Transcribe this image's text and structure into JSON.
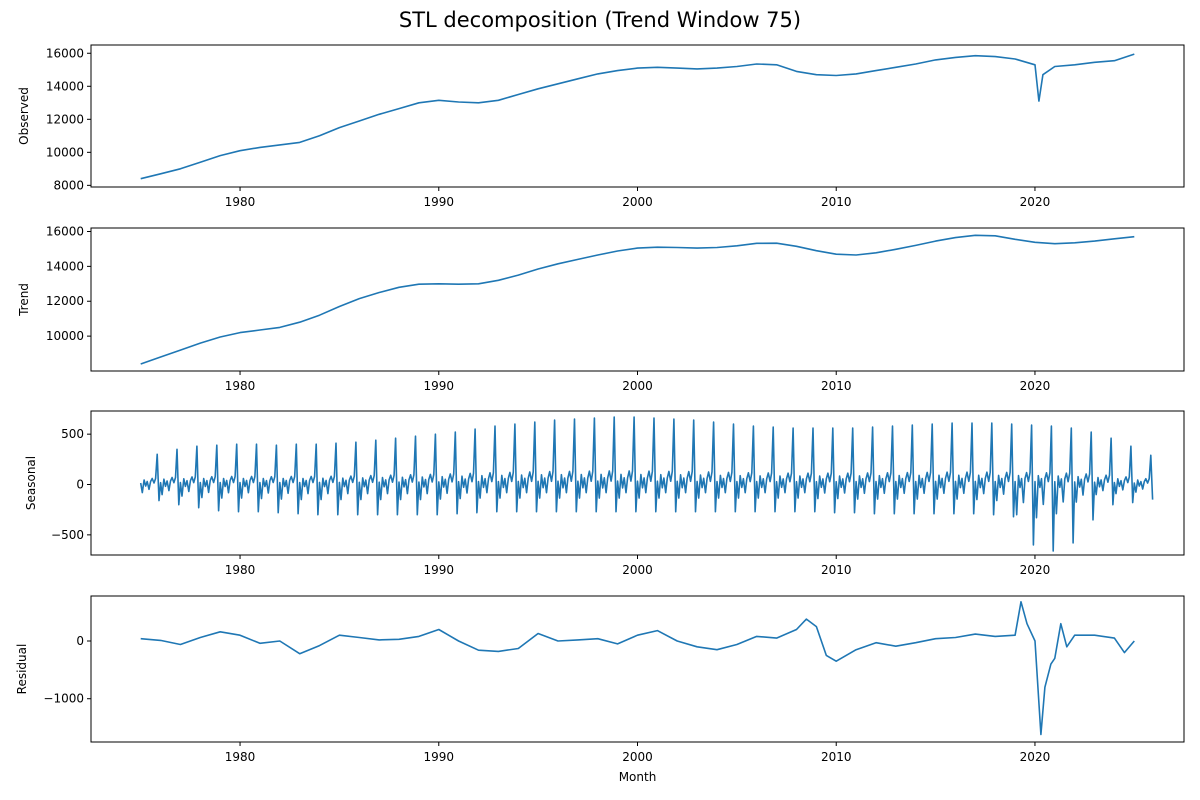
{
  "title": "STL decomposition (Trend Window 75)",
  "chart_data": [
    {
      "type": "line",
      "panel": "observed",
      "ylabel": "Observed",
      "xlabel": "",
      "xlim": [
        1972.5,
        2027.5
      ],
      "ylim": [
        7900,
        16500
      ],
      "xticks": [
        1980,
        1990,
        2000,
        2010,
        2020
      ],
      "yticks": [
        8000,
        10000,
        12000,
        14000,
        16000
      ],
      "ytick_labels": [
        "8000",
        "10000",
        "12000",
        "14000",
        "16000"
      ],
      "series": [
        {
          "x": [
            1975,
            1976,
            1977,
            1978,
            1979,
            1980,
            1981,
            1982,
            1983,
            1984,
            1985,
            1986,
            1987,
            1988,
            1989,
            1990,
            1991,
            1992,
            1993,
            1994,
            1995,
            1996,
            1997,
            1998,
            1999,
            2000,
            2001,
            2002,
            2003,
            2004,
            2005,
            2006,
            2007,
            2008,
            2009,
            2010,
            2011,
            2012,
            2013,
            2014,
            2015,
            2016,
            2017,
            2018,
            2019,
            2020,
            2020.2,
            2020.4,
            2021,
            2022,
            2023,
            2024,
            2025
          ],
          "y": [
            8400,
            8700,
            9000,
            9400,
            9800,
            10100,
            10300,
            10450,
            10600,
            11000,
            11500,
            11900,
            12300,
            12650,
            13000,
            13150,
            13050,
            13000,
            13150,
            13500,
            13850,
            14150,
            14450,
            14750,
            14950,
            15100,
            15150,
            15100,
            15050,
            15100,
            15200,
            15350,
            15300,
            14900,
            14700,
            14650,
            14750,
            14950,
            15150,
            15350,
            15600,
            15750,
            15850,
            15800,
            15650,
            15300,
            13100,
            14700,
            15200,
            15300,
            15450,
            15550,
            15950
          ]
        }
      ]
    },
    {
      "type": "line",
      "panel": "trend",
      "ylabel": "Trend",
      "xlabel": "",
      "xlim": [
        1972.5,
        2027.5
      ],
      "ylim": [
        8000,
        16200
      ],
      "xticks": [
        1980,
        1990,
        2000,
        2010,
        2020
      ],
      "yticks": [
        10000,
        12000,
        14000,
        16000
      ],
      "ytick_labels": [
        "10000",
        "12000",
        "14000",
        "16000"
      ],
      "series": [
        {
          "x": [
            1975,
            1976,
            1977,
            1978,
            1979,
            1980,
            1981,
            1982,
            1983,
            1984,
            1985,
            1986,
            1987,
            1988,
            1989,
            1990,
            1991,
            1992,
            1993,
            1994,
            1995,
            1996,
            1997,
            1998,
            1999,
            2000,
            2001,
            2002,
            2003,
            2004,
            2005,
            2006,
            2007,
            2008,
            2009,
            2010,
            2011,
            2012,
            2013,
            2014,
            2015,
            2016,
            2017,
            2018,
            2019,
            2020,
            2021,
            2022,
            2023,
            2024,
            2025
          ],
          "y": [
            8400,
            8800,
            9200,
            9600,
            9950,
            10200,
            10350,
            10500,
            10800,
            11200,
            11700,
            12150,
            12500,
            12800,
            12980,
            13000,
            12980,
            13000,
            13200,
            13500,
            13850,
            14150,
            14400,
            14650,
            14880,
            15050,
            15100,
            15080,
            15050,
            15080,
            15180,
            15320,
            15330,
            15150,
            14900,
            14700,
            14650,
            14780,
            14980,
            15200,
            15450,
            15650,
            15780,
            15750,
            15550,
            15380,
            15300,
            15350,
            15450,
            15580,
            15700
          ]
        }
      ]
    },
    {
      "type": "line",
      "panel": "seasonal",
      "ylabel": "Seasonal",
      "xlabel": "",
      "xlim": [
        1972.5,
        2027.5
      ],
      "ylim": [
        -700,
        730
      ],
      "xticks": [
        1980,
        1990,
        2000,
        2010,
        2020
      ],
      "yticks": [
        -500,
        0,
        500
      ],
      "ytick_labels": [
        "−500",
        "0",
        "500"
      ],
      "series": [
        {
          "start": 1975,
          "step_months": 1,
          "peaks_per_year": [
            300,
            350,
            380,
            390,
            400,
            400,
            390,
            400,
            400,
            410,
            420,
            440,
            460,
            480,
            500,
            520,
            550,
            580,
            600,
            620,
            640,
            650,
            660,
            670,
            670,
            660,
            650,
            640,
            620,
            600,
            580,
            570,
            560,
            560,
            560,
            560,
            570,
            580,
            590,
            600,
            610,
            610,
            610,
            600,
            590,
            580,
            560,
            520,
            460,
            380,
            290
          ],
          "troughs_per_year": [
            -160,
            -200,
            -230,
            -260,
            -270,
            -270,
            -280,
            -290,
            -300,
            -300,
            -300,
            -300,
            -300,
            -300,
            -300,
            -290,
            -280,
            -270,
            -270,
            -270,
            -270,
            -270,
            -270,
            -270,
            -270,
            -270,
            -270,
            -270,
            -270,
            -270,
            -270,
            -270,
            -270,
            -270,
            -280,
            -280,
            -290,
            -290,
            -290,
            -290,
            -290,
            -290,
            -300,
            -320,
            -600,
            -660,
            -580,
            -350,
            -200,
            -180,
            -150
          ]
        }
      ]
    },
    {
      "type": "line",
      "panel": "residual",
      "ylabel": "Residual",
      "xlabel": "Month",
      "xlim": [
        1972.5,
        2027.5
      ],
      "ylim": [
        -1750,
        780
      ],
      "xticks": [
        1980,
        1990,
        2000,
        2010,
        2020
      ],
      "yticks": [
        -1000,
        0
      ],
      "ytick_labels": [
        "−1000",
        "0"
      ],
      "series": [
        {
          "x": [
            1975,
            1976,
            1977,
            1978,
            1979,
            1980,
            1981,
            1982,
            1983,
            1984,
            1985,
            1986,
            1987,
            1988,
            1989,
            1990,
            1991,
            1992,
            1993,
            1994,
            1995,
            1996,
            1997,
            1998,
            1999,
            2000,
            2001,
            2002,
            2003,
            2004,
            2005,
            2006,
            2007,
            2008,
            2008.5,
            2009,
            2009.5,
            2010,
            2011,
            2012,
            2013,
            2014,
            2015,
            2016,
            2017,
            2018,
            2019,
            2019.3,
            2019.6,
            2020,
            2020.3,
            2020.5,
            2020.8,
            2021,
            2021.3,
            2021.6,
            2022,
            2023,
            2024,
            2024.5,
            2025
          ],
          "y": [
            40,
            10,
            -60,
            60,
            160,
            100,
            -40,
            0,
            -220,
            -80,
            100,
            60,
            20,
            30,
            80,
            200,
            0,
            -160,
            -180,
            -130,
            130,
            0,
            20,
            40,
            -50,
            100,
            180,
            0,
            -100,
            -150,
            -60,
            80,
            50,
            200,
            380,
            250,
            -250,
            -350,
            -150,
            -30,
            -90,
            -30,
            40,
            60,
            120,
            80,
            100,
            680,
            300,
            0,
            -1620,
            -800,
            -400,
            -300,
            300,
            -100,
            100,
            100,
            50,
            -200,
            0
          ]
        }
      ]
    }
  ]
}
